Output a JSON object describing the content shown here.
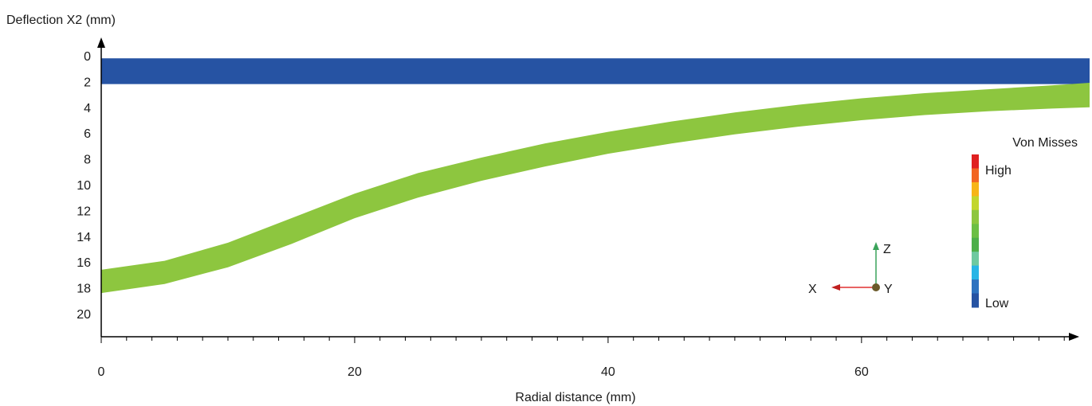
{
  "chart_data": {
    "type": "area",
    "title": "",
    "xlabel": "Radial distance (mm)",
    "ylabel": "Deflection X2 (mm)",
    "xlim": [
      0,
      78
    ],
    "ylim": [
      0,
      22
    ],
    "y_inverted": true,
    "x_ticks": [
      0,
      20,
      40,
      60
    ],
    "y_ticks": [
      0,
      2,
      4,
      6,
      8,
      10,
      12,
      14,
      16,
      18,
      20
    ],
    "grid": false,
    "series": [
      {
        "kind": "band",
        "color": "#2653a3",
        "x": [
          0,
          78
        ],
        "top": [
          0.2,
          0.2
        ],
        "bottom": [
          2.2,
          2.2
        ]
      },
      {
        "kind": "band",
        "color": "#8dc63f",
        "x": [
          0,
          5,
          10,
          15,
          20,
          25,
          30,
          35,
          40,
          45,
          50,
          55,
          60,
          65,
          70,
          75,
          78
        ],
        "top": [
          16.6,
          15.9,
          14.5,
          12.6,
          10.7,
          9.1,
          7.9,
          6.8,
          5.9,
          5.1,
          4.4,
          3.8,
          3.3,
          2.9,
          2.6,
          2.3,
          2.1
        ],
        "bottom": [
          18.4,
          17.7,
          16.4,
          14.6,
          12.6,
          11.0,
          9.7,
          8.6,
          7.6,
          6.8,
          6.1,
          5.5,
          5.0,
          4.6,
          4.3,
          4.1,
          4.0
        ]
      }
    ],
    "legend": {
      "title": "Von Misses",
      "high_label": "High",
      "low_label": "Low",
      "colors": [
        "#e02020",
        "#f26522",
        "#f7b516",
        "#c2d62d",
        "#8dc63f",
        "#6cbf45",
        "#4daf4a",
        "#6ec9a0",
        "#28b5e6",
        "#2e73c0",
        "#2653a3"
      ],
      "placement": "right"
    },
    "triad": {
      "z_label": "Z",
      "x_label": "X",
      "y_label": "Y"
    }
  }
}
